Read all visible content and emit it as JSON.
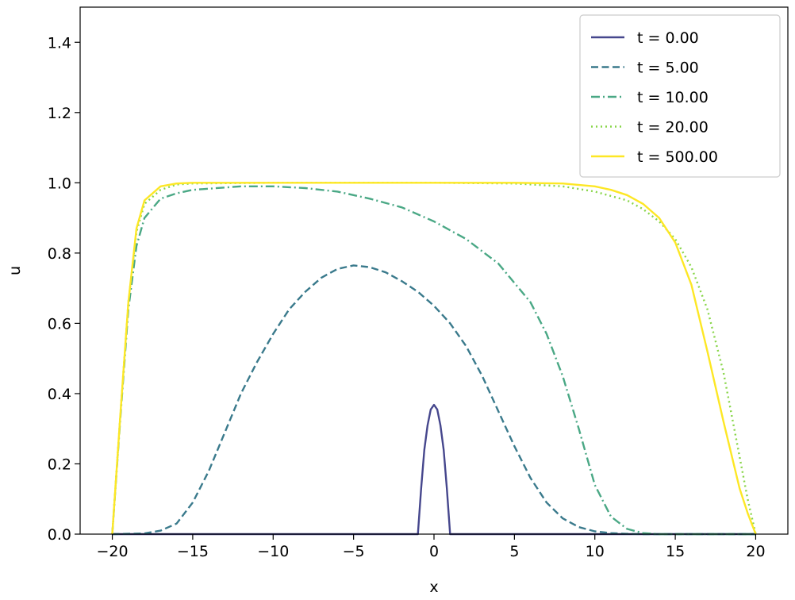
{
  "chart_data": {
    "type": "line",
    "title": "",
    "xlabel": "x",
    "ylabel": "u",
    "xlim": [
      -22,
      22
    ],
    "ylim": [
      0,
      1.5
    ],
    "xticks": [
      -20,
      -15,
      -10,
      -5,
      0,
      5,
      10,
      15,
      20
    ],
    "xtick_labels": [
      "−20",
      "−15",
      "−10",
      "−5",
      "0",
      "5",
      "10",
      "15",
      "20"
    ],
    "yticks": [
      0.0,
      0.2,
      0.4,
      0.6,
      0.8,
      1.0,
      1.2,
      1.4
    ],
    "ytick_labels": [
      "0.0",
      "0.2",
      "0.4",
      "0.6",
      "0.8",
      "1.0",
      "1.2",
      "1.4"
    ],
    "grid": false,
    "legend_position": "top-right",
    "series": [
      {
        "name": "t = 0.00",
        "color": "#46478d",
        "style": "solid",
        "x": [
          -20,
          -1,
          -0.8,
          -0.6,
          -0.4,
          -0.2,
          0,
          0.2,
          0.4,
          0.6,
          0.8,
          1,
          20
        ],
        "y": [
          0,
          0,
          0.13,
          0.24,
          0.31,
          0.355,
          0.368,
          0.355,
          0.31,
          0.24,
          0.13,
          0,
          0
        ]
      },
      {
        "name": "t = 5.00",
        "color": "#3a7a8c",
        "style": "dashed",
        "x": [
          -20,
          -18,
          -17,
          -16,
          -15,
          -14,
          -13,
          -12,
          -11,
          -10,
          -9,
          -8,
          -7,
          -6,
          -5,
          -4,
          -3,
          -2,
          -1,
          0,
          1,
          2,
          3,
          4,
          5,
          6,
          7,
          8,
          9,
          10,
          11,
          12,
          13,
          20
        ],
        "y": [
          0,
          0.002,
          0.01,
          0.03,
          0.09,
          0.18,
          0.29,
          0.4,
          0.49,
          0.57,
          0.64,
          0.69,
          0.73,
          0.755,
          0.765,
          0.76,
          0.745,
          0.72,
          0.69,
          0.65,
          0.6,
          0.535,
          0.45,
          0.35,
          0.25,
          0.16,
          0.09,
          0.045,
          0.02,
          0.008,
          0.003,
          0.001,
          0,
          0
        ]
      },
      {
        "name": "t = 10.00",
        "color": "#4aa885",
        "style": "dashdot",
        "x": [
          -20,
          -19.5,
          -19,
          -18.5,
          -18,
          -17,
          -16,
          -15,
          -12,
          -10,
          -8,
          -6,
          -4,
          -2,
          0,
          2,
          4,
          6,
          7,
          8,
          9,
          10,
          11,
          12,
          13,
          14,
          20
        ],
        "y": [
          0,
          0.33,
          0.64,
          0.82,
          0.9,
          0.955,
          0.97,
          0.98,
          0.99,
          0.99,
          0.985,
          0.975,
          0.955,
          0.93,
          0.89,
          0.84,
          0.77,
          0.66,
          0.57,
          0.45,
          0.3,
          0.14,
          0.05,
          0.015,
          0.003,
          0,
          0
        ]
      },
      {
        "name": "t = 20.00",
        "color": "#88d548",
        "style": "dotted",
        "x": [
          -20,
          -19.5,
          -19,
          -18.5,
          -18,
          -17,
          -16,
          -15,
          -10,
          -5,
          0,
          5,
          8,
          10,
          12,
          13,
          14,
          15,
          16,
          17,
          18,
          19,
          19.5,
          20
        ],
        "y": [
          0,
          0.34,
          0.66,
          0.86,
          0.94,
          0.98,
          0.995,
          0.998,
          1.0,
          1.0,
          1.0,
          0.998,
          0.99,
          0.975,
          0.95,
          0.925,
          0.89,
          0.84,
          0.76,
          0.64,
          0.46,
          0.22,
          0.1,
          0
        ]
      },
      {
        "name": "t = 500.00",
        "color": "#fde725",
        "style": "solid",
        "x": [
          -20,
          -19.5,
          -19,
          -18.5,
          -18,
          -17,
          -16,
          -15,
          -10,
          -5,
          0,
          5,
          8,
          10,
          11,
          12,
          13,
          14,
          15,
          16,
          17,
          18,
          19,
          19.5,
          20
        ],
        "y": [
          0,
          0.34,
          0.66,
          0.87,
          0.95,
          0.99,
          0.998,
          1.0,
          1.0,
          1.0,
          1.0,
          1.0,
          0.998,
          0.99,
          0.98,
          0.965,
          0.94,
          0.9,
          0.83,
          0.71,
          0.52,
          0.32,
          0.13,
          0.06,
          0
        ]
      }
    ]
  }
}
